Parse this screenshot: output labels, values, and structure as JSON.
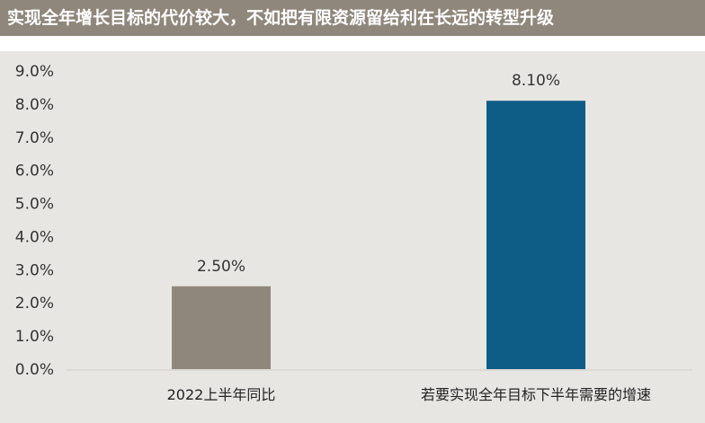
{
  "title": "实现全年增长目标的代价较大，不如把有限资源留给利在长远的转型升级",
  "colors": {
    "title_bg": "#8f877b",
    "plot_bg": "#e8e6e3",
    "bar_1": "#8f877b",
    "bar_2": "#0e5d87"
  },
  "chart_data": {
    "type": "bar",
    "title": "实现全年增长目标的代价较大，不如把有限资源留给利在长远的转型升级",
    "categories": [
      "2022上半年同比",
      "若要实现全年目标下半年需要的增速"
    ],
    "values": [
      2.5,
      8.1
    ],
    "data_labels": [
      "2.50%",
      "8.10%"
    ],
    "bar_colors": [
      "#8f877b",
      "#0e5d87"
    ],
    "ylim": [
      0,
      9
    ],
    "yticks": [
      "0.0%",
      "1.0%",
      "2.0%",
      "3.0%",
      "4.0%",
      "5.0%",
      "6.0%",
      "7.0%",
      "8.0%",
      "9.0%"
    ],
    "xlabel": "",
    "ylabel": "",
    "grid": false,
    "legend": "none"
  }
}
